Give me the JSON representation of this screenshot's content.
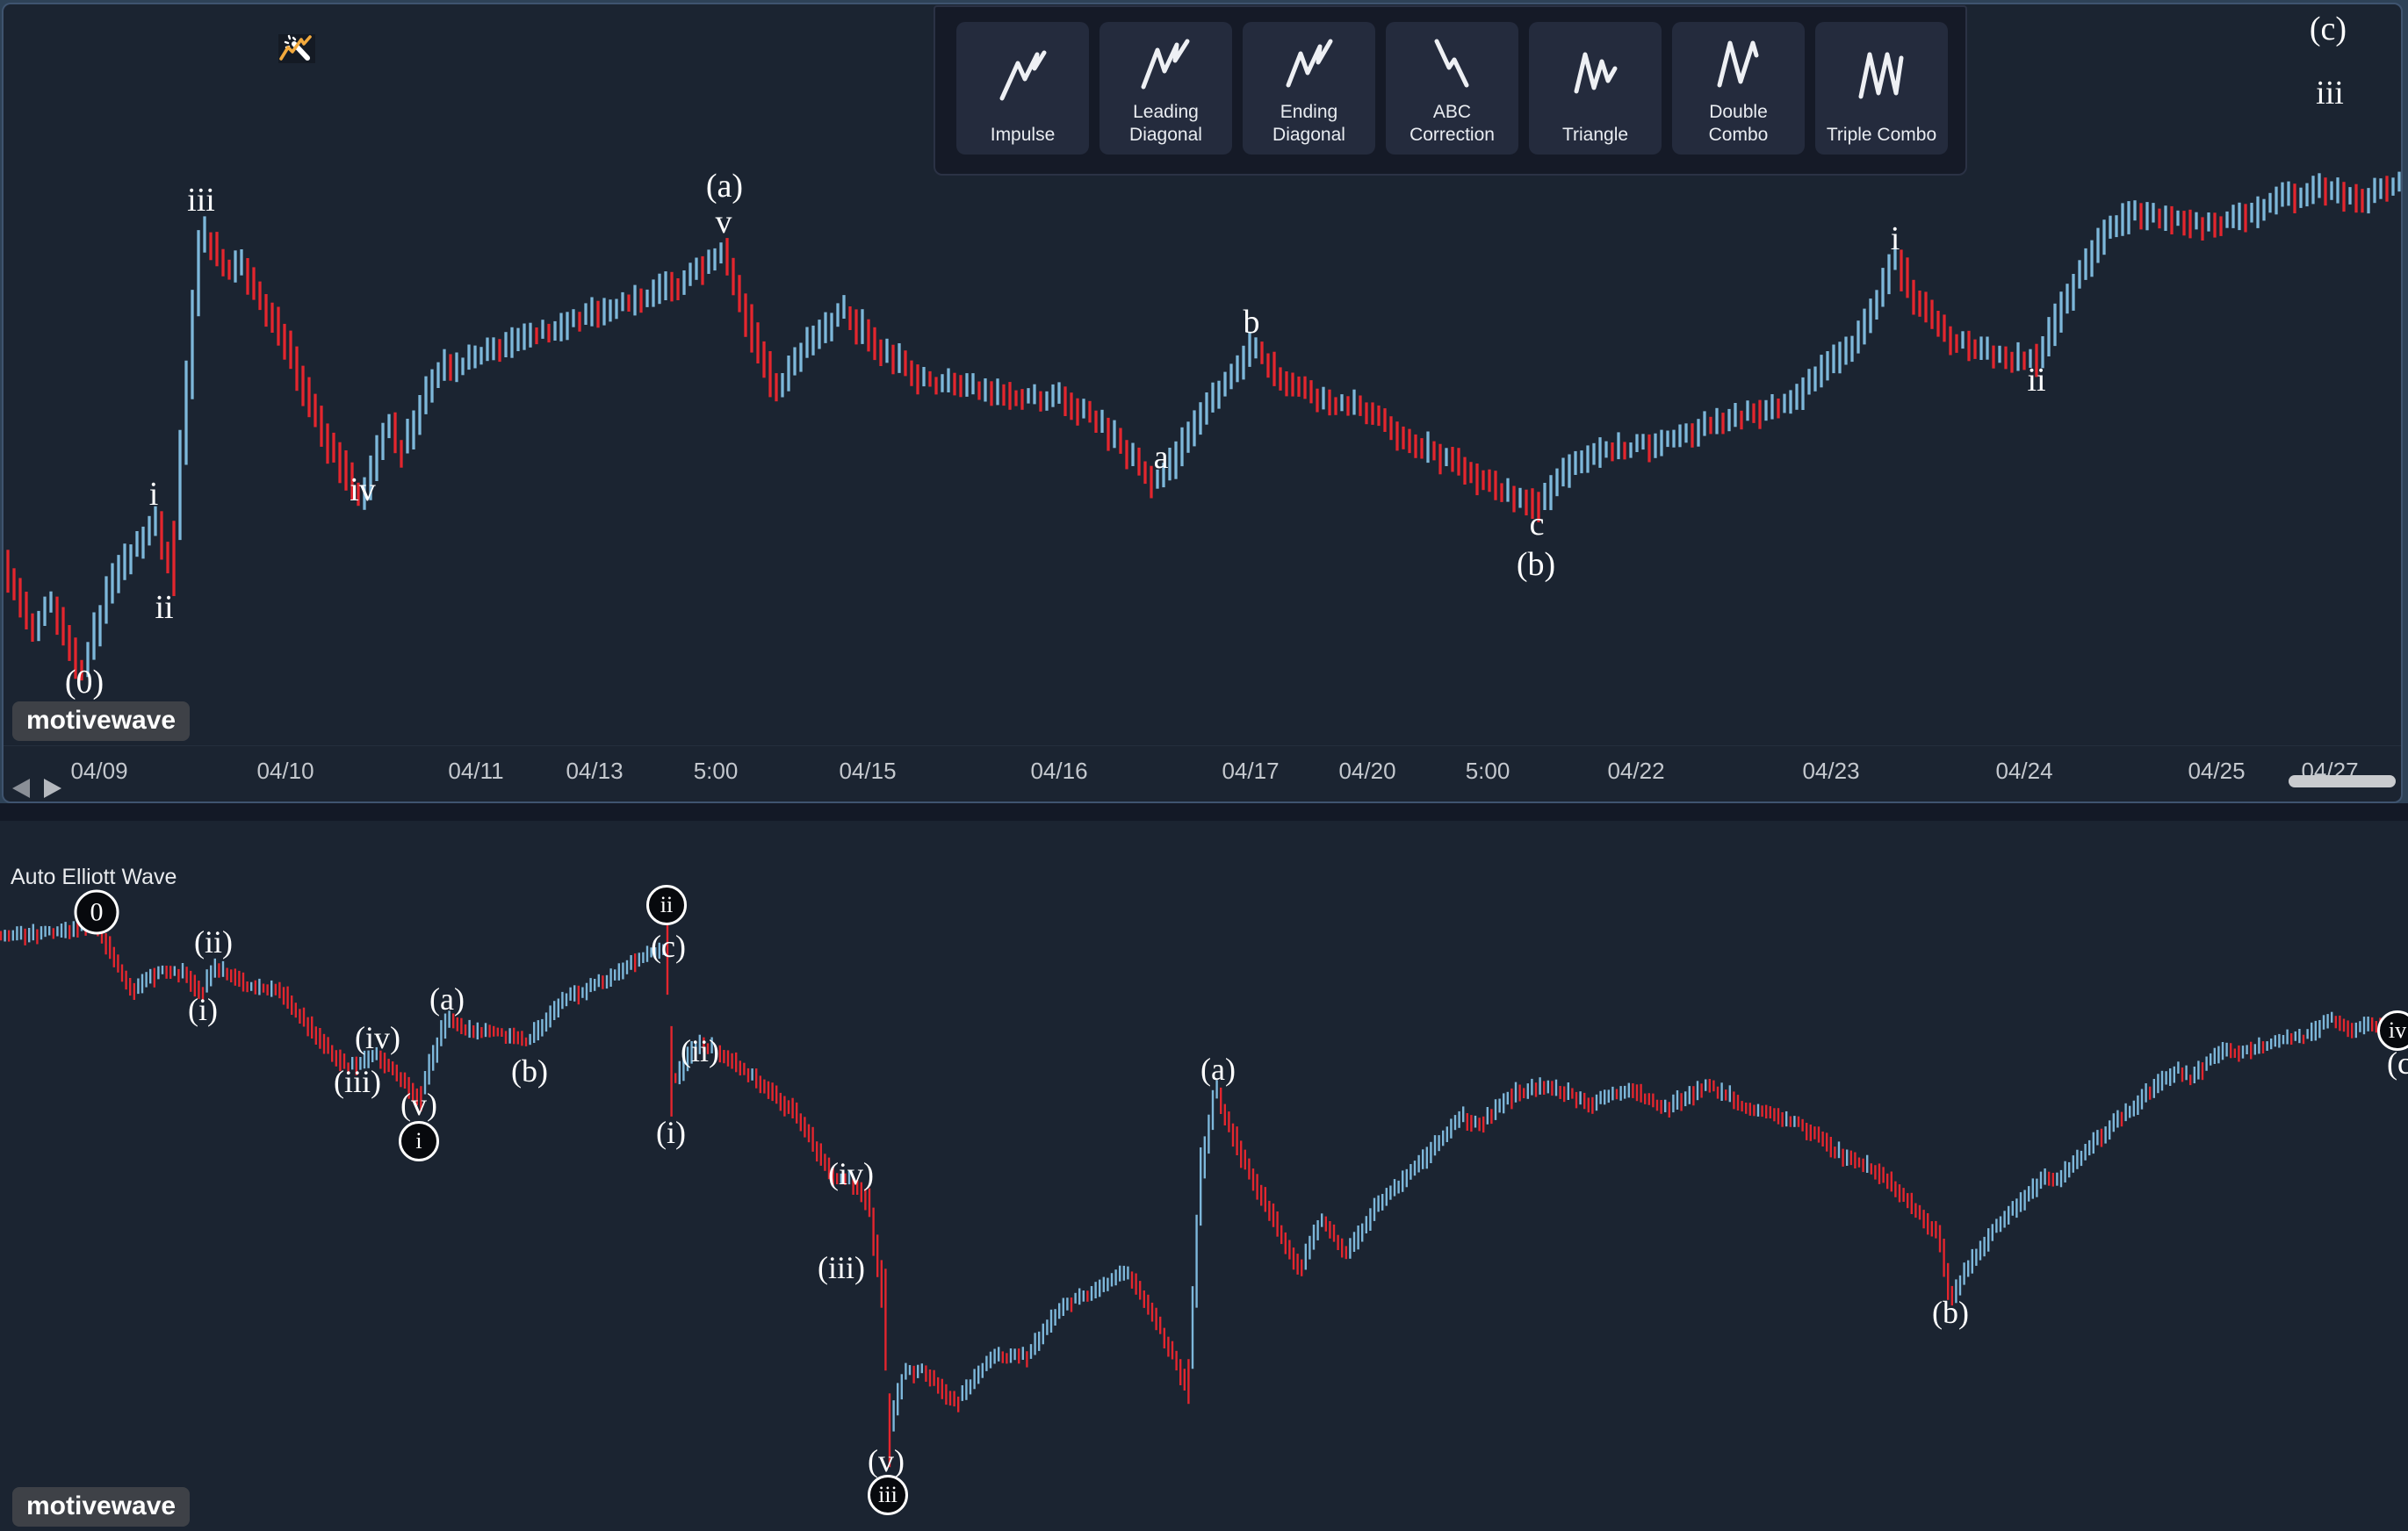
{
  "window": {
    "page_bg": "#2e4257",
    "panel_bg": "#1b2431",
    "panel_border": "#3f546f",
    "gap_bg": "#131926"
  },
  "toolbar": {
    "buttons": [
      {
        "label": "Impulse",
        "icon": "impulse-zigzag-icon"
      },
      {
        "label": "Leading\nDiagonal",
        "icon": "leading-diagonal-zigzag-icon"
      },
      {
        "label": "Ending\nDiagonal",
        "icon": "ending-diagonal-zigzag-icon"
      },
      {
        "label": "ABC\nCorrection",
        "icon": "abc-correction-zigzag-icon"
      },
      {
        "label": "Triangle",
        "icon": "triangle-zigzag-icon"
      },
      {
        "label": "Double\nCombo",
        "icon": "double-combo-zigzag-icon"
      },
      {
        "label": "Triple Combo",
        "icon": "triple-combo-zigzag-icon"
      }
    ]
  },
  "wand_button": {
    "icon": "magic-wand-chart-icon",
    "accent_color": "#f2a93d"
  },
  "top_chart": {
    "watermark": "motivewave",
    "scrollbar_visible": true,
    "x_axis_labels": [
      {
        "text": "04/09",
        "x": 113
      },
      {
        "text": "04/10",
        "x": 325
      },
      {
        "text": "04/11",
        "x": 542
      },
      {
        "text": "04/13",
        "x": 677
      },
      {
        "text": "5:00",
        "x": 815
      },
      {
        "text": "04/15",
        "x": 988
      },
      {
        "text": "04/16",
        "x": 1206
      },
      {
        "text": "04/17",
        "x": 1424
      },
      {
        "text": "04/20",
        "x": 1557
      },
      {
        "text": "5:00",
        "x": 1694
      },
      {
        "text": "04/22",
        "x": 1863
      },
      {
        "text": "04/23",
        "x": 2085
      },
      {
        "text": "04/24",
        "x": 2305
      },
      {
        "text": "04/25",
        "x": 2524
      },
      {
        "text": "04/27",
        "x": 2653
      }
    ]
  },
  "bottom_chart": {
    "study_label": "Auto Elliott Wave",
    "watermark": "motivewave"
  },
  "chart_data": [
    {
      "id": "top",
      "type": "ohlc-bars",
      "description": "Intraday price bars 04/09-04/27 with Elliott Wave count overlay; no visible price axis (y values are pixel positions)",
      "up_color": "#7db7da",
      "down_color": "#e3262e",
      "bar_step": 7,
      "bar_width": 3.3,
      "seed": 11,
      "jitter": 10,
      "min_range": 16,
      "slope_gain": 1.25,
      "max_slope_range": 150,
      "rand_range": 16,
      "y_clamp": [
        14,
        842
      ],
      "x_range": [
        2,
        2740
      ],
      "path": [
        [
          0,
          630
        ],
        [
          40,
          718
        ],
        [
          58,
          688
        ],
        [
          95,
          765
        ],
        [
          130,
          660
        ],
        [
          165,
          612
        ],
        [
          178,
          592
        ],
        [
          196,
          658
        ],
        [
          230,
          262
        ],
        [
          262,
          310
        ],
        [
          272,
          292
        ],
        [
          330,
          400
        ],
        [
          375,
          505
        ],
        [
          413,
          570
        ],
        [
          444,
          482
        ],
        [
          458,
          515
        ],
        [
          500,
          422
        ],
        [
          540,
          408
        ],
        [
          600,
          385
        ],
        [
          660,
          364
        ],
        [
          700,
          350
        ],
        [
          740,
          335
        ],
        [
          780,
          322
        ],
        [
          823,
          283
        ],
        [
          858,
          380
        ],
        [
          886,
          448
        ],
        [
          922,
          388
        ],
        [
          946,
          370
        ],
        [
          958,
          350
        ],
        [
          1000,
          395
        ],
        [
          1055,
          435
        ],
        [
          1100,
          435
        ],
        [
          1150,
          455
        ],
        [
          1205,
          452
        ],
        [
          1250,
          478
        ],
        [
          1310,
          545
        ],
        [
          1322,
          550
        ],
        [
          1376,
          460
        ],
        [
          1428,
          395
        ],
        [
          1460,
          430
        ],
        [
          1500,
          455
        ],
        [
          1545,
          462
        ],
        [
          1600,
          498
        ],
        [
          1660,
          530
        ],
        [
          1720,
          562
        ],
        [
          1752,
          578
        ],
        [
          1788,
          532
        ],
        [
          1830,
          515
        ],
        [
          1870,
          508
        ],
        [
          1910,
          500
        ],
        [
          1950,
          482
        ],
        [
          1990,
          472
        ],
        [
          2030,
          465
        ],
        [
          2070,
          430
        ],
        [
          2110,
          392
        ],
        [
          2140,
          340
        ],
        [
          2158,
          292
        ],
        [
          2180,
          338
        ],
        [
          2220,
          385
        ],
        [
          2260,
          400
        ],
        [
          2300,
          410
        ],
        [
          2318,
          412
        ],
        [
          2360,
          330
        ],
        [
          2400,
          262
        ],
        [
          2430,
          240
        ],
        [
          2470,
          250
        ],
        [
          2510,
          256
        ],
        [
          2550,
          250
        ],
        [
          2600,
          226
        ],
        [
          2640,
          215
        ],
        [
          2665,
          222
        ],
        [
          2690,
          228
        ],
        [
          2720,
          214
        ],
        [
          2742,
          210
        ]
      ],
      "wave_labels": [
        {
          "text": "(0)",
          "x": 96,
          "y": 777
        },
        {
          "text": "i",
          "x": 175,
          "y": 563
        },
        {
          "text": "ii",
          "x": 187,
          "y": 692
        },
        {
          "text": "iii",
          "x": 229,
          "y": 228
        },
        {
          "text": "iv",
          "x": 413,
          "y": 558
        },
        {
          "text": "v",
          "x": 824,
          "y": 253
        },
        {
          "text": "(a)",
          "x": 825,
          "y": 212
        },
        {
          "text": "a",
          "x": 1322,
          "y": 521
        },
        {
          "text": "b",
          "x": 1425,
          "y": 367
        },
        {
          "text": "c",
          "x": 1750,
          "y": 597
        },
        {
          "text": "(b)",
          "x": 1749,
          "y": 643
        },
        {
          "text": "i",
          "x": 2158,
          "y": 272
        },
        {
          "text": "ii",
          "x": 2319,
          "y": 433
        },
        {
          "text": "iii",
          "x": 2653,
          "y": 106
        },
        {
          "text": "(c)",
          "x": 2651,
          "y": 33
        }
      ]
    },
    {
      "id": "bottom",
      "type": "ohlc-bars",
      "description": "Lower-timeframe price bars with Auto Elliott Wave study labels; no visible price axis (y values are pixel positions)",
      "up_color": "#7db7da",
      "down_color": "#e3262e",
      "bar_step": 4.6,
      "bar_width": 2.4,
      "seed": 29,
      "jitter": 7,
      "min_range": 9,
      "slope_gain": 1.2,
      "max_slope_range": 170,
      "rand_range": 10,
      "y_clamp": [
        948,
        1738
      ],
      "x_range": [
        1,
        2741
      ],
      "path": [
        [
          0,
          1068
        ],
        [
          50,
          1064
        ],
        [
          110,
          1056
        ],
        [
          152,
          1128
        ],
        [
          180,
          1108
        ],
        [
          210,
          1108
        ],
        [
          230,
          1132
        ],
        [
          245,
          1100
        ],
        [
          280,
          1122
        ],
        [
          320,
          1130
        ],
        [
          360,
          1178
        ],
        [
          396,
          1216
        ],
        [
          430,
          1200
        ],
        [
          470,
          1242
        ],
        [
          477,
          1256
        ],
        [
          509,
          1160
        ],
        [
          540,
          1176
        ],
        [
          575,
          1178
        ],
        [
          603,
          1186
        ],
        [
          640,
          1140
        ],
        [
          690,
          1116
        ],
        [
          734,
          1090
        ],
        [
          761,
          1082
        ],
        [
          765,
          1238
        ],
        [
          797,
          1186
        ],
        [
          830,
          1205
        ],
        [
          870,
          1235
        ],
        [
          910,
          1272
        ],
        [
          950,
          1345
        ],
        [
          966,
          1342
        ],
        [
          990,
          1372
        ],
        [
          1008,
          1490
        ],
        [
          1013,
          1628
        ],
        [
          1030,
          1565
        ],
        [
          1050,
          1560
        ],
        [
          1090,
          1598
        ],
        [
          1130,
          1545
        ],
        [
          1170,
          1545
        ],
        [
          1210,
          1488
        ],
        [
          1250,
          1468
        ],
        [
          1285,
          1448
        ],
        [
          1320,
          1510
        ],
        [
          1353,
          1578
        ],
        [
          1359,
          1500
        ],
        [
          1368,
          1340
        ],
        [
          1385,
          1242
        ],
        [
          1420,
          1330
        ],
        [
          1460,
          1405
        ],
        [
          1480,
          1448
        ],
        [
          1505,
          1388
        ],
        [
          1535,
          1428
        ],
        [
          1570,
          1372
        ],
        [
          1620,
          1322
        ],
        [
          1665,
          1272
        ],
        [
          1685,
          1282
        ],
        [
          1730,
          1243
        ],
        [
          1770,
          1238
        ],
        [
          1810,
          1258
        ],
        [
          1855,
          1242
        ],
        [
          1900,
          1262
        ],
        [
          1945,
          1235
        ],
        [
          1985,
          1258
        ],
        [
          2030,
          1272
        ],
        [
          2065,
          1290
        ],
        [
          2100,
          1318
        ],
        [
          2135,
          1332
        ],
        [
          2175,
          1368
        ],
        [
          2208,
          1408
        ],
        [
          2222,
          1478
        ],
        [
          2270,
          1400
        ],
        [
          2330,
          1340
        ],
        [
          2345,
          1342
        ],
        [
          2420,
          1268
        ],
        [
          2480,
          1218
        ],
        [
          2495,
          1228
        ],
        [
          2530,
          1198
        ],
        [
          2560,
          1196
        ],
        [
          2600,
          1185
        ],
        [
          2630,
          1180
        ],
        [
          2655,
          1160
        ],
        [
          2680,
          1172
        ],
        [
          2700,
          1168
        ],
        [
          2725,
          1178
        ],
        [
          2742,
          1162
        ]
      ],
      "wave_labels": [
        {
          "text": "0",
          "x": 110,
          "y": 1039,
          "circled": true,
          "d": 45
        },
        {
          "text": "(ii)",
          "x": 243,
          "y": 1073
        },
        {
          "text": "(i)",
          "x": 231,
          "y": 1150
        },
        {
          "text": "(iv)",
          "x": 430,
          "y": 1182
        },
        {
          "text": "(iii)",
          "x": 407,
          "y": 1232
        },
        {
          "text": "(v)",
          "x": 477,
          "y": 1258
        },
        {
          "text": "i",
          "x": 477,
          "y": 1300,
          "circled": true,
          "d": 40
        },
        {
          "text": "(a)",
          "x": 509,
          "y": 1138
        },
        {
          "text": "(b)",
          "x": 603,
          "y": 1220
        },
        {
          "text": "ii",
          "x": 759,
          "y": 1031,
          "circled": true,
          "d": 40
        },
        {
          "text": "(c)",
          "x": 761,
          "y": 1078
        },
        {
          "text": "(ii)",
          "x": 797,
          "y": 1197
        },
        {
          "text": "(i)",
          "x": 764,
          "y": 1290
        },
        {
          "text": "(iv)",
          "x": 969,
          "y": 1337
        },
        {
          "text": "(iii)",
          "x": 958,
          "y": 1444
        },
        {
          "text": "(v)",
          "x": 1009,
          "y": 1664
        },
        {
          "text": "iii",
          "x": 1011,
          "y": 1703,
          "circled": true,
          "d": 40
        },
        {
          "text": "(a)",
          "x": 1387,
          "y": 1218
        },
        {
          "text": "(b)",
          "x": 2221,
          "y": 1495
        },
        {
          "text": "iv",
          "x": 2730,
          "y": 1174,
          "circled": true,
          "d": 40
        },
        {
          "text": "(c)",
          "x": 2738,
          "y": 1211
        }
      ]
    }
  ]
}
